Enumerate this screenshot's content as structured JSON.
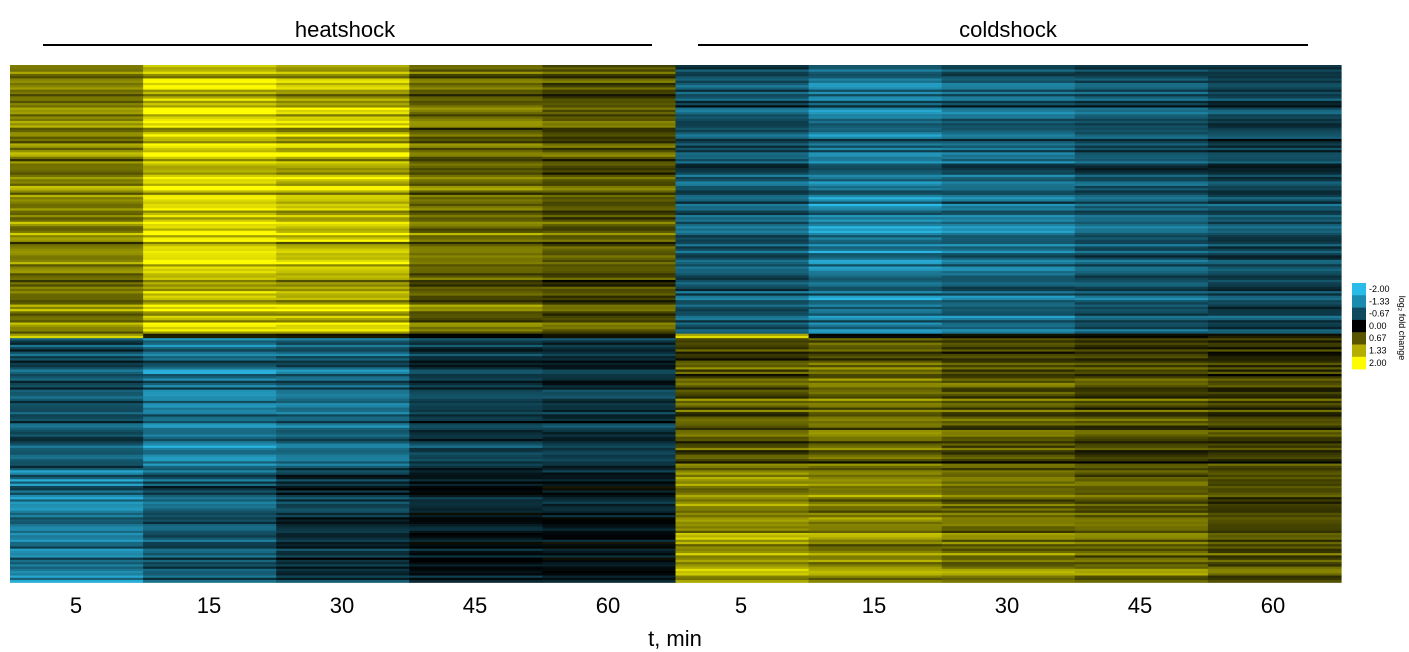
{
  "chart_data": {
    "type": "heatmap",
    "groups": [
      {
        "name": "heatshock",
        "timepoints": [
          "5",
          "15",
          "30",
          "45",
          "60"
        ]
      },
      {
        "name": "coldshock",
        "timepoints": [
          "5",
          "15",
          "30",
          "45",
          "60"
        ]
      }
    ],
    "xlabel": "t, min",
    "rows_shown": "many genes (individual rows not labeled)",
    "clusters": [
      {
        "fraction_of_rows": 0.52,
        "heatshock": [
          1.1,
          1.8,
          1.6,
          0.9,
          0.7
        ],
        "coldshock": [
          -1.0,
          -1.4,
          -1.2,
          -1.0,
          -0.8
        ]
      },
      {
        "fraction_of_rows": 0.01,
        "heatshock": [
          2.0,
          0.3,
          0.2,
          0.1,
          0.1
        ],
        "coldshock": [
          2.0,
          -0.2,
          0.1,
          0.1,
          0.1
        ]
      },
      {
        "fraction_of_rows": 0.25,
        "heatshock": [
          -0.9,
          -1.4,
          -1.2,
          -0.7,
          -0.6
        ],
        "coldshock": [
          0.7,
          0.9,
          0.7,
          0.6,
          0.5
        ]
      },
      {
        "fraction_of_rows": 0.22,
        "heatshock": [
          -1.4,
          -1.0,
          -0.6,
          -0.3,
          -0.3
        ],
        "coldshock": [
          1.2,
          1.1,
          0.9,
          0.8,
          0.6
        ]
      }
    ],
    "colorbar": {
      "label": "log₂ fold change",
      "ticks": [
        "-2.00",
        "-1.33",
        "-0.67",
        "0.00",
        "0.67",
        "1.33",
        "2.00"
      ],
      "colors": [
        "#2bbbe8",
        "#1c8bb0",
        "#0f4a5e",
        "#000000",
        "#5a5600",
        "#b5ae00",
        "#fffb00"
      ]
    },
    "colors": {
      "negative": "#2bbbe8",
      "zero": "#000000",
      "positive": "#fffb00"
    }
  }
}
